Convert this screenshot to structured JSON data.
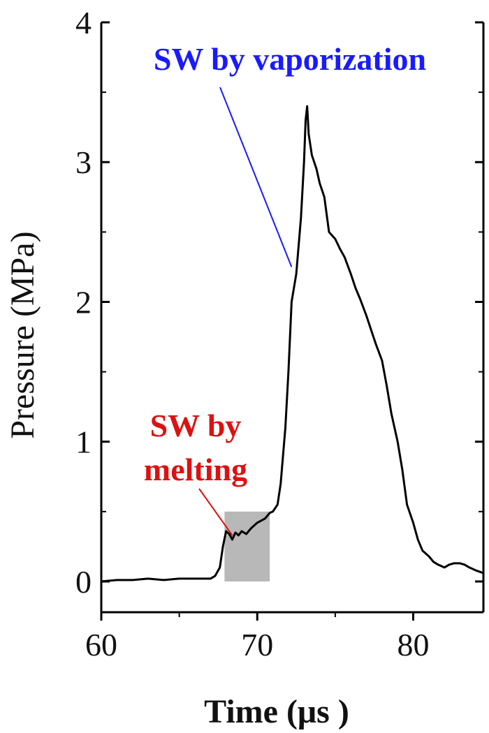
{
  "chart_data": {
    "type": "line",
    "xlabel": "Time (μs )",
    "ylabel": "Pressure (MPa)",
    "xlim": [
      60,
      84.5
    ],
    "ylim": [
      -0.22,
      4.0
    ],
    "x_ticks": [
      60,
      70,
      80
    ],
    "x_tick_labels": [
      "60",
      "70",
      "80"
    ],
    "y_ticks": [
      0,
      1,
      2,
      3,
      4
    ],
    "y_tick_labels": [
      "0",
      "1",
      "2",
      "3",
      "4"
    ],
    "grid": false,
    "colors": {
      "line": "#000000",
      "vapor_annotation": "#1a1aff",
      "melt_annotation": "#dd1111",
      "highlight": "#b8b8b8"
    },
    "series": [
      {
        "x": [
          60,
          61,
          62,
          63,
          64,
          65,
          66,
          66.5,
          67,
          67.3,
          67.6,
          67.8,
          68,
          68.2,
          68.4,
          68.6,
          68.8,
          69,
          69.3,
          69.6,
          70,
          70.5,
          70.8,
          71,
          71.3,
          71.5,
          71.8,
          72,
          72.2,
          72.5,
          72.8,
          73,
          73.1,
          73.2,
          73.3,
          73.5,
          73.8,
          74,
          74.3,
          74.6,
          75,
          75.3,
          75.6,
          76,
          76.3,
          76.6,
          77,
          77.3,
          77.6,
          78,
          78.3,
          78.6,
          79,
          79.3,
          79.6,
          80,
          80.3,
          80.6,
          81,
          81.3,
          81.6,
          82,
          82.3,
          82.6,
          83,
          83.3,
          83.6,
          84,
          84.5
        ],
        "y": [
          0.0,
          0.01,
          0.01,
          0.02,
          0.01,
          0.02,
          0.02,
          0.02,
          0.02,
          0.04,
          0.1,
          0.25,
          0.36,
          0.34,
          0.3,
          0.35,
          0.33,
          0.36,
          0.34,
          0.38,
          0.42,
          0.45,
          0.49,
          0.5,
          0.55,
          0.7,
          1.1,
          1.5,
          2.0,
          2.2,
          2.6,
          3.0,
          3.3,
          3.4,
          3.2,
          3.05,
          2.95,
          2.85,
          2.75,
          2.5,
          2.45,
          2.38,
          2.32,
          2.2,
          2.1,
          2.02,
          1.9,
          1.8,
          1.7,
          1.58,
          1.4,
          1.2,
          1.0,
          0.8,
          0.55,
          0.42,
          0.3,
          0.22,
          0.18,
          0.14,
          0.12,
          0.1,
          0.12,
          0.13,
          0.13,
          0.12,
          0.1,
          0.08,
          0.06
        ]
      }
    ],
    "annotations": {
      "vaporization": {
        "text": "SW by vaporization",
        "point_at": [
          72.2,
          2.25
        ]
      },
      "melting": {
        "line1": "SW by",
        "line2": "melting",
        "point_at": [
          68.4,
          0.33
        ]
      },
      "highlight_box": {
        "x": [
          67.9,
          70.8
        ],
        "y": [
          0,
          0.5
        ]
      }
    }
  }
}
